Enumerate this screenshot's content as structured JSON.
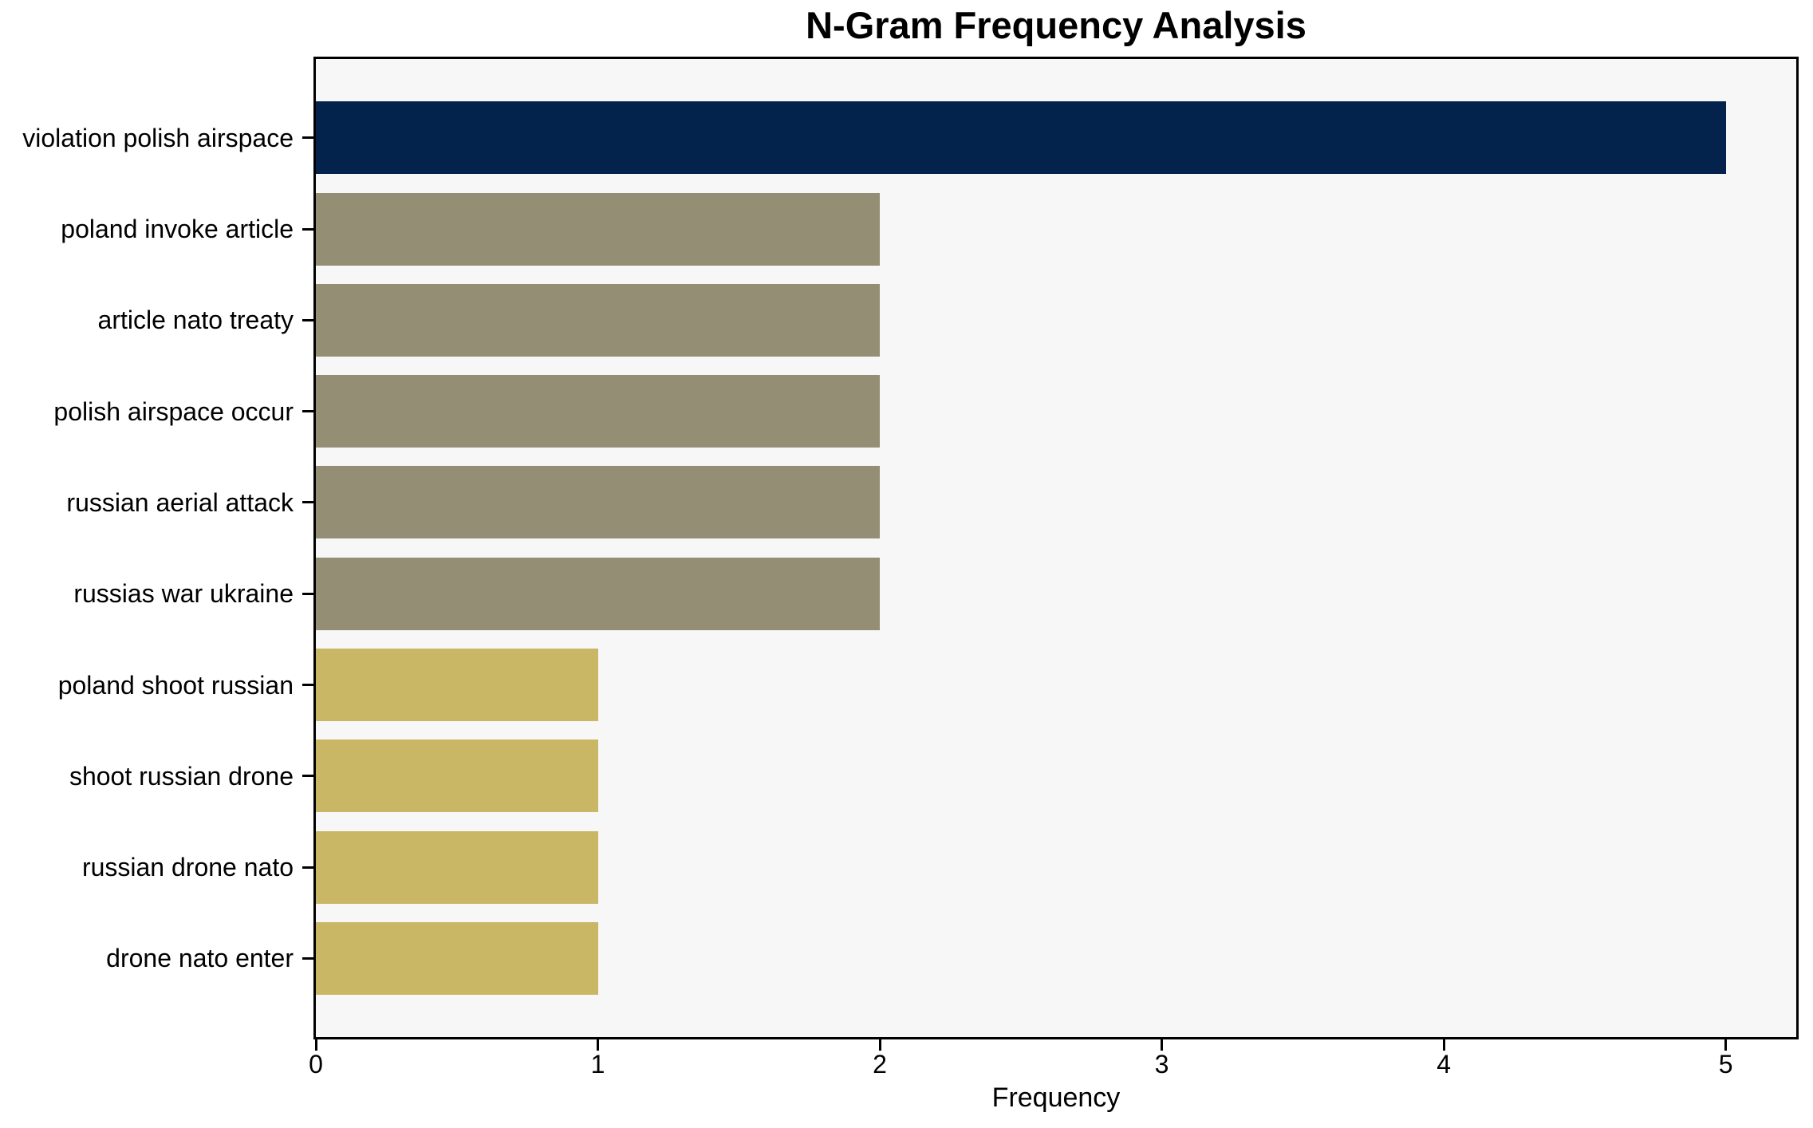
{
  "figure": {
    "background": "#ffffff",
    "plot_background": "#f7f7f7",
    "axis_color": "#000000",
    "text_color": "#000000"
  },
  "chart_data": {
    "type": "bar",
    "orientation": "horizontal",
    "title": "N-Gram Frequency Analysis",
    "xlabel": "Frequency",
    "ylabel": "",
    "categories": [
      "violation polish airspace",
      "poland invoke article",
      "article nato treaty",
      "polish airspace occur",
      "russian aerial attack",
      "russias war ukraine",
      "poland shoot russian",
      "shoot russian drone",
      "russian drone nato",
      "drone nato enter"
    ],
    "values": [
      5,
      2,
      2,
      2,
      2,
      2,
      1,
      1,
      1,
      1
    ],
    "bar_colors": [
      "#03224c",
      "#948e75",
      "#948e75",
      "#948e75",
      "#948e75",
      "#948e75",
      "#c9b765",
      "#c9b765",
      "#c9b765",
      "#c9b765"
    ],
    "xticks": [
      0,
      1,
      2,
      3,
      4,
      5
    ],
    "xlim": [
      0,
      5.25
    ],
    "grid": false,
    "legend": false,
    "bar_height_fraction": 0.8
  }
}
